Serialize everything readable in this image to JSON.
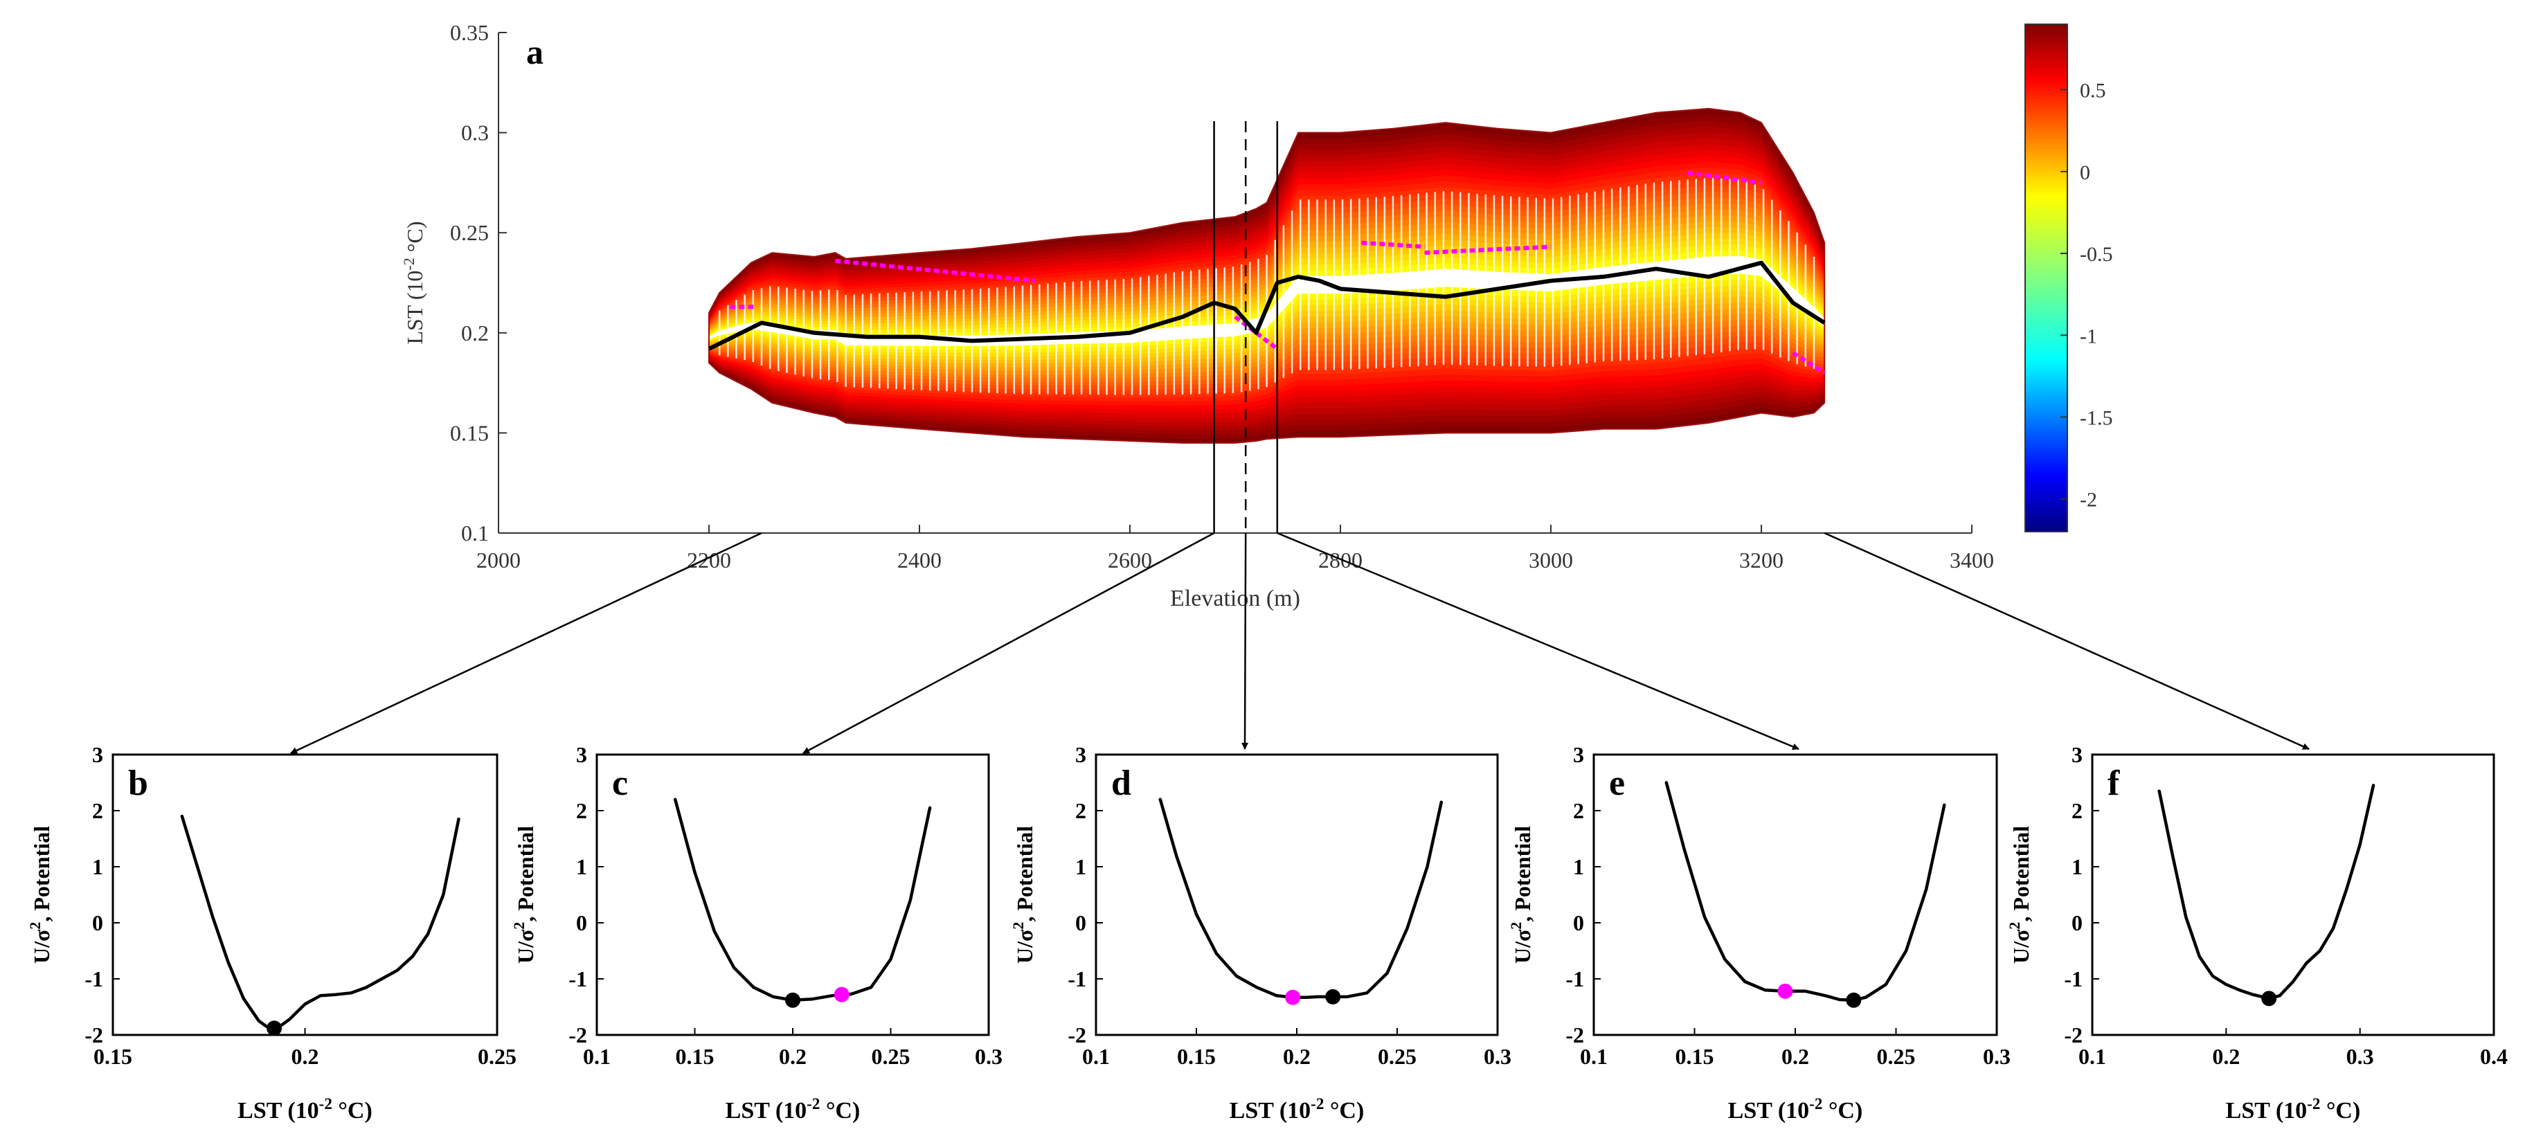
{
  "chart_data": [
    {
      "id": "a",
      "type": "heatmap",
      "panel_label": "a",
      "title": "",
      "xlabel": "Elevation  (m)",
      "ylabel": "LST  (10",
      "ylabel_exp": "-2",
      "ylabel_unit": " °C)",
      "xlim": [
        2000,
        3400
      ],
      "ylim": [
        0.1,
        0.35
      ],
      "xticks": [
        2000,
        2200,
        2400,
        2600,
        2800,
        3000,
        3200,
        3400
      ],
      "yticks": [
        0.1,
        0.15,
        0.2,
        0.25,
        0.3,
        0.35
      ],
      "colorbar": {
        "colormap": "jet",
        "range": [
          -2.2,
          0.9
        ],
        "ticks": [
          0.5,
          0,
          -0.5,
          -1,
          -1.5,
          -2
        ]
      },
      "band_envelope": {
        "elevation": [
          2200,
          2210,
          2240,
          2260,
          2300,
          2320,
          2330,
          2400,
          2450,
          2500,
          2550,
          2600,
          2650,
          2700,
          2720,
          2730,
          2760,
          2800,
          2850,
          2900,
          2950,
          3000,
          3050,
          3100,
          3150,
          3180,
          3200,
          3230,
          3250,
          3260
        ],
        "upper": [
          0.21,
          0.22,
          0.235,
          0.24,
          0.238,
          0.24,
          0.237,
          0.24,
          0.242,
          0.245,
          0.248,
          0.25,
          0.255,
          0.258,
          0.262,
          0.265,
          0.3,
          0.3,
          0.302,
          0.305,
          0.302,
          0.3,
          0.305,
          0.31,
          0.312,
          0.31,
          0.305,
          0.28,
          0.26,
          0.245
        ],
        "lower": [
          0.185,
          0.18,
          0.172,
          0.165,
          0.16,
          0.158,
          0.155,
          0.152,
          0.15,
          0.148,
          0.147,
          0.146,
          0.145,
          0.145,
          0.146,
          0.147,
          0.148,
          0.148,
          0.149,
          0.15,
          0.15,
          0.15,
          0.152,
          0.152,
          0.155,
          0.158,
          0.16,
          0.158,
          0.16,
          0.165
        ]
      },
      "stable_state_curve": {
        "color": "#000000",
        "elevation": [
          2200,
          2250,
          2300,
          2350,
          2400,
          2450,
          2500,
          2550,
          2600,
          2650,
          2680,
          2700,
          2720,
          2740,
          2760,
          2780,
          2800,
          2850,
          2900,
          2950,
          3000,
          3050,
          3100,
          3150,
          3200,
          3230,
          3260
        ],
        "lst": [
          0.192,
          0.205,
          0.2,
          0.198,
          0.198,
          0.196,
          0.197,
          0.198,
          0.2,
          0.208,
          0.215,
          0.212,
          0.2,
          0.225,
          0.228,
          0.226,
          0.222,
          0.22,
          0.218,
          0.222,
          0.226,
          0.228,
          0.232,
          0.228,
          0.235,
          0.215,
          0.205
        ]
      },
      "unstable_state_points": {
        "color": "#ff00ff",
        "segments": [
          {
            "elevation": [
              2220,
              2245
            ],
            "lst": [
              0.213,
              0.213
            ]
          },
          {
            "elevation": [
              2320,
              2510
            ],
            "lst": [
              0.236,
              0.226
            ]
          },
          {
            "elevation": [
              2700,
              2740
            ],
            "lst": [
              0.208,
              0.192
            ]
          },
          {
            "elevation": [
              2820,
              2880
            ],
            "lst": [
              0.245,
              0.243
            ]
          },
          {
            "elevation": [
              2880,
              3000
            ],
            "lst": [
              0.24,
              0.243
            ]
          },
          {
            "elevation": [
              3130,
              3200
            ],
            "lst": [
              0.28,
              0.275
            ]
          },
          {
            "elevation": [
              3230,
              3260
            ],
            "lst": [
              0.19,
              0.18
            ]
          }
        ]
      },
      "markers": [
        {
          "elevation": 2680,
          "style": "solid"
        },
        {
          "elevation": 2710,
          "style": "dashed"
        },
        {
          "elevation": 2740,
          "style": "solid"
        }
      ],
      "arrow_sources": [
        2250,
        2680,
        2710,
        2740,
        3260
      ]
    },
    {
      "id": "b",
      "type": "line",
      "panel_label": "b",
      "xlabel": "LST  (10",
      "xlabel_exp": "-2",
      "xlabel_unit": " °C)",
      "ylabel": "U/σ",
      "ylabel_exp": "2",
      "ylabel_unit": ", Potential",
      "xlim": [
        0.15,
        0.25
      ],
      "ylim": [
        -2,
        3
      ],
      "xticks": [
        0.15,
        0.2,
        0.25
      ],
      "xtick_labels": [
        "0.15",
        "0.2",
        "0.25"
      ],
      "yticks": [
        -2,
        -1,
        0,
        1,
        2,
        3
      ],
      "x": [
        0.168,
        0.172,
        0.176,
        0.18,
        0.184,
        0.188,
        0.19,
        0.192,
        0.194,
        0.196,
        0.2,
        0.204,
        0.208,
        0.212,
        0.216,
        0.22,
        0.224,
        0.228,
        0.232,
        0.236,
        0.24
      ],
      "y": [
        1.9,
        1.0,
        0.1,
        -0.7,
        -1.35,
        -1.75,
        -1.85,
        -1.88,
        -1.82,
        -1.72,
        -1.45,
        -1.3,
        -1.28,
        -1.25,
        -1.15,
        -1.0,
        -0.85,
        -0.6,
        -0.2,
        0.5,
        1.85
      ],
      "points": [
        {
          "x": 0.192,
          "y": -1.88,
          "color": "#000000"
        }
      ]
    },
    {
      "id": "c",
      "type": "line",
      "panel_label": "c",
      "xlabel": "LST  (10",
      "xlabel_exp": "-2",
      "xlabel_unit": " °C)",
      "ylabel": "U/σ",
      "ylabel_exp": "2",
      "ylabel_unit": ", Potential",
      "xlim": [
        0.1,
        0.3
      ],
      "ylim": [
        -2,
        3
      ],
      "xticks": [
        0.1,
        0.15,
        0.2,
        0.25,
        0.3
      ],
      "xtick_labels": [
        "0.1",
        "0.15",
        "0.2",
        "0.25",
        "0.3"
      ],
      "yticks": [
        -2,
        -1,
        0,
        1,
        2,
        3
      ],
      "x": [
        0.14,
        0.15,
        0.16,
        0.17,
        0.18,
        0.19,
        0.2,
        0.21,
        0.22,
        0.225,
        0.23,
        0.24,
        0.25,
        0.26,
        0.27
      ],
      "y": [
        2.2,
        0.9,
        -0.15,
        -0.8,
        -1.15,
        -1.32,
        -1.38,
        -1.36,
        -1.3,
        -1.28,
        -1.27,
        -1.15,
        -0.65,
        0.4,
        2.05
      ],
      "points": [
        {
          "x": 0.2,
          "y": -1.38,
          "color": "#000000"
        },
        {
          "x": 0.225,
          "y": -1.28,
          "color": "#ff00ff"
        }
      ]
    },
    {
      "id": "d",
      "type": "line",
      "panel_label": "d",
      "xlabel": "LST  (10",
      "xlabel_exp": "-2",
      "xlabel_unit": " °C)",
      "ylabel": "U/σ",
      "ylabel_exp": "2",
      "ylabel_unit": ", Potential",
      "xlim": [
        0.1,
        0.3
      ],
      "ylim": [
        -2,
        3
      ],
      "xticks": [
        0.1,
        0.15,
        0.2,
        0.25,
        0.3
      ],
      "xtick_labels": [
        "0.1",
        "0.15",
        "0.2",
        "0.25",
        "0.3"
      ],
      "yticks": [
        -2,
        -1,
        0,
        1,
        2,
        3
      ],
      "x": [
        0.132,
        0.14,
        0.15,
        0.16,
        0.17,
        0.18,
        0.19,
        0.198,
        0.205,
        0.21,
        0.218,
        0.225,
        0.235,
        0.245,
        0.255,
        0.265,
        0.272
      ],
      "y": [
        2.2,
        1.2,
        0.15,
        -0.55,
        -0.95,
        -1.15,
        -1.3,
        -1.33,
        -1.33,
        -1.32,
        -1.32,
        -1.32,
        -1.25,
        -0.9,
        -0.1,
        1.0,
        2.15
      ],
      "points": [
        {
          "x": 0.198,
          "y": -1.33,
          "color": "#ff00ff"
        },
        {
          "x": 0.218,
          "y": -1.32,
          "color": "#000000"
        }
      ]
    },
    {
      "id": "e",
      "type": "line",
      "panel_label": "e",
      "xlabel": "LST  (10",
      "xlabel_exp": "-2",
      "xlabel_unit": " °C)",
      "ylabel": "U/σ",
      "ylabel_exp": "2",
      "ylabel_unit": ", Potential",
      "xlim": [
        0.1,
        0.3
      ],
      "ylim": [
        -2,
        3
      ],
      "xticks": [
        0.1,
        0.15,
        0.2,
        0.25,
        0.3
      ],
      "xtick_labels": [
        "0.1",
        "0.15",
        "0.2",
        "0.25",
        "0.3"
      ],
      "yticks": [
        -2,
        -1,
        0,
        1,
        2,
        3
      ],
      "x": [
        0.136,
        0.145,
        0.155,
        0.165,
        0.175,
        0.185,
        0.195,
        0.205,
        0.215,
        0.222,
        0.229,
        0.235,
        0.245,
        0.255,
        0.265,
        0.274
      ],
      "y": [
        2.5,
        1.3,
        0.1,
        -0.65,
        -1.05,
        -1.2,
        -1.22,
        -1.22,
        -1.3,
        -1.37,
        -1.38,
        -1.33,
        -1.1,
        -0.5,
        0.6,
        2.1
      ],
      "points": [
        {
          "x": 0.195,
          "y": -1.22,
          "color": "#ff00ff"
        },
        {
          "x": 0.229,
          "y": -1.38,
          "color": "#000000"
        }
      ]
    },
    {
      "id": "f",
      "type": "line",
      "panel_label": "f",
      "xlabel": "LST  (10",
      "xlabel_exp": "-2",
      "xlabel_unit": " °C)",
      "ylabel": "U/σ",
      "ylabel_exp": "2",
      "ylabel_unit": ", Potential",
      "xlim": [
        0.1,
        0.4
      ],
      "ylim": [
        -2,
        3
      ],
      "xticks": [
        0.1,
        0.2,
        0.3,
        0.4
      ],
      "xtick_labels": [
        "0.1",
        "0.2",
        "0.3",
        "0.4"
      ],
      "yticks": [
        -2,
        -1,
        0,
        1,
        2,
        3
      ],
      "x": [
        0.15,
        0.16,
        0.17,
        0.18,
        0.19,
        0.2,
        0.21,
        0.22,
        0.232,
        0.24,
        0.25,
        0.26,
        0.27,
        0.28,
        0.29,
        0.3,
        0.31
      ],
      "y": [
        2.35,
        1.2,
        0.1,
        -0.6,
        -0.95,
        -1.1,
        -1.2,
        -1.28,
        -1.35,
        -1.3,
        -1.05,
        -0.72,
        -0.5,
        -0.1,
        0.6,
        1.4,
        2.45
      ],
      "points": [
        {
          "x": 0.232,
          "y": -1.35,
          "color": "#000000"
        }
      ]
    }
  ]
}
